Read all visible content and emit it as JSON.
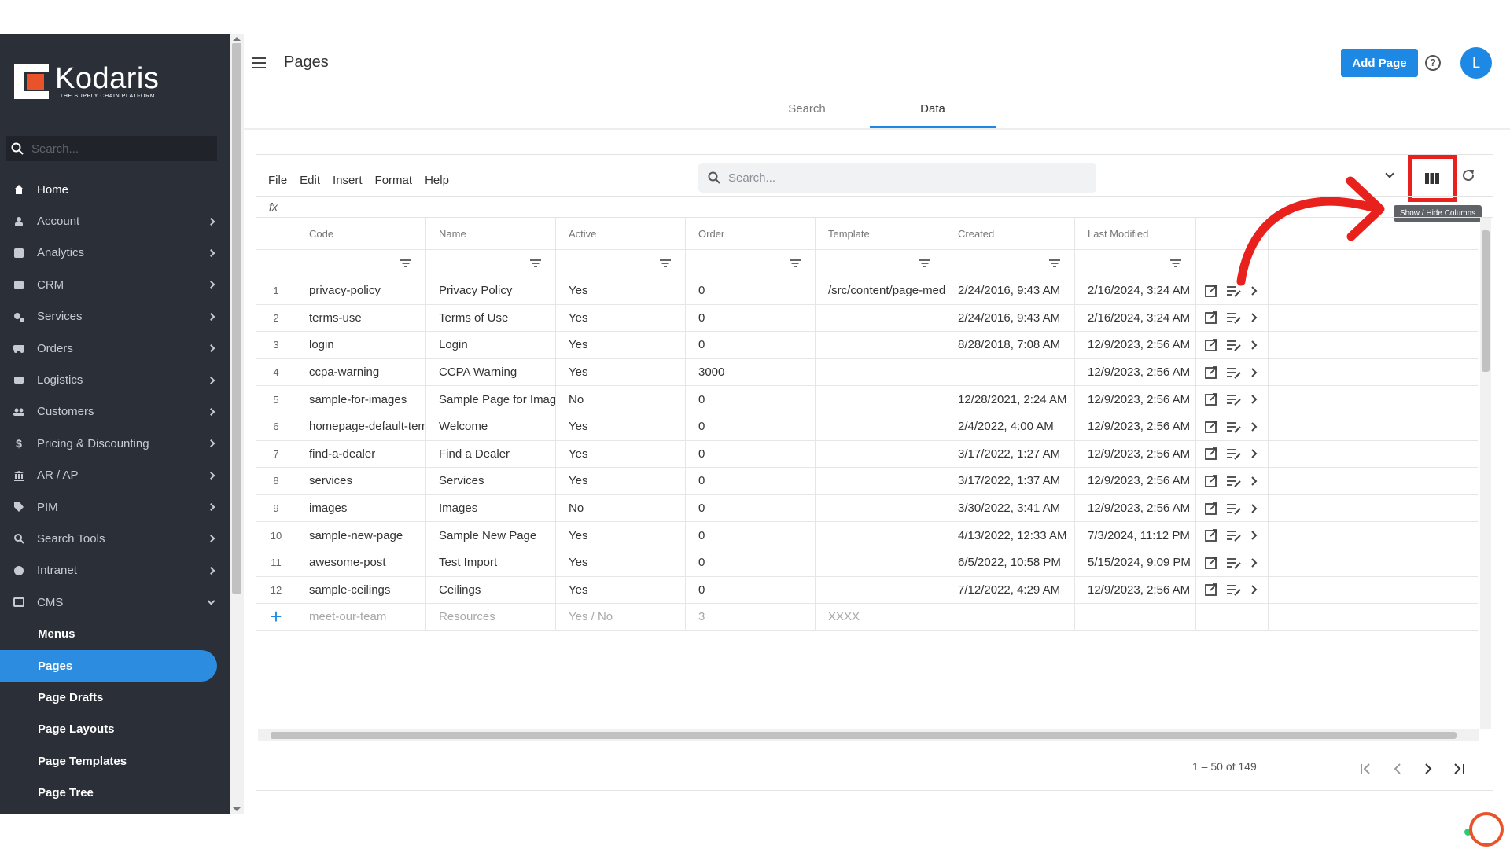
{
  "brand": {
    "name": "Kodaris",
    "tagline": "THE SUPPLY CHAIN PLATFORM"
  },
  "sidebar": {
    "search_placeholder": "Search...",
    "items": [
      {
        "label": "Home",
        "icon": "home-icon"
      },
      {
        "label": "Account",
        "icon": "person-icon"
      },
      {
        "label": "Analytics",
        "icon": "chart-icon"
      },
      {
        "label": "CRM",
        "icon": "crm-icon"
      },
      {
        "label": "Services",
        "icon": "gears-icon"
      },
      {
        "label": "Orders",
        "icon": "truck-icon"
      },
      {
        "label": "Logistics",
        "icon": "bus-icon"
      },
      {
        "label": "Customers",
        "icon": "people-icon"
      },
      {
        "label": "Pricing & Discounting",
        "icon": "dollar-icon"
      },
      {
        "label": "AR / AP",
        "icon": "bank-icon"
      },
      {
        "label": "PIM",
        "icon": "tag-icon"
      },
      {
        "label": "Search Tools",
        "icon": "search-icon"
      },
      {
        "label": "Intranet",
        "icon": "globe-icon"
      },
      {
        "label": "CMS",
        "icon": "cms-icon"
      }
    ],
    "cms_items": [
      {
        "label": "Menus"
      },
      {
        "label": "Pages"
      },
      {
        "label": "Page Drafts"
      },
      {
        "label": "Page Layouts"
      },
      {
        "label": "Page Templates"
      },
      {
        "label": "Page Tree"
      }
    ]
  },
  "header": {
    "title": "Pages",
    "add_button": "Add Page",
    "avatar_initial": "L",
    "tabs": [
      {
        "label": "Search"
      },
      {
        "label": "Data"
      }
    ]
  },
  "toolbar": {
    "menus": [
      "File",
      "Edit",
      "Insert",
      "Format",
      "Help"
    ],
    "search_placeholder": "Search...",
    "tooltip": "Show / Hide Columns",
    "fx": "fx"
  },
  "table": {
    "columns": [
      "Code",
      "Name",
      "Active",
      "Order",
      "Template",
      "Created",
      "Last Modified"
    ],
    "rows": [
      {
        "n": "1",
        "code": "privacy-policy",
        "name": "Privacy Policy",
        "active": "Yes",
        "order": "0",
        "template": "/src/content/page-mediu...",
        "created": "2/24/2016, 9:43 AM",
        "modified": "2/16/2024, 3:24 AM"
      },
      {
        "n": "2",
        "code": "terms-use",
        "name": "Terms of Use",
        "active": "Yes",
        "order": "0",
        "template": "",
        "created": "2/24/2016, 9:43 AM",
        "modified": "2/16/2024, 3:24 AM"
      },
      {
        "n": "3",
        "code": "login",
        "name": "Login",
        "active": "Yes",
        "order": "0",
        "template": "",
        "created": "8/28/2018, 7:08 AM",
        "modified": "12/9/2023, 2:56 AM"
      },
      {
        "n": "4",
        "code": "ccpa-warning",
        "name": "CCPA Warning",
        "active": "Yes",
        "order": "3000",
        "template": "",
        "created": "",
        "modified": "12/9/2023, 2:56 AM"
      },
      {
        "n": "5",
        "code": "sample-for-images",
        "name": "Sample Page for Images",
        "active": "No",
        "order": "0",
        "template": "",
        "created": "12/28/2021, 2:24 AM",
        "modified": "12/9/2023, 2:56 AM"
      },
      {
        "n": "6",
        "code": "homepage-default-tem...",
        "name": "Welcome",
        "active": "Yes",
        "order": "0",
        "template": "",
        "created": "2/4/2022, 4:00 AM",
        "modified": "12/9/2023, 2:56 AM"
      },
      {
        "n": "7",
        "code": "find-a-dealer",
        "name": "Find a Dealer",
        "active": "Yes",
        "order": "0",
        "template": "",
        "created": "3/17/2022, 1:27 AM",
        "modified": "12/9/2023, 2:56 AM"
      },
      {
        "n": "8",
        "code": "services",
        "name": "Services",
        "active": "Yes",
        "order": "0",
        "template": "",
        "created": "3/17/2022, 1:37 AM",
        "modified": "12/9/2023, 2:56 AM"
      },
      {
        "n": "9",
        "code": "images",
        "name": "Images",
        "active": "No",
        "order": "0",
        "template": "",
        "created": "3/30/2022, 3:41 AM",
        "modified": "12/9/2023, 2:56 AM"
      },
      {
        "n": "10",
        "code": "sample-new-page",
        "name": "Sample New Page",
        "active": "Yes",
        "order": "0",
        "template": "",
        "created": "4/13/2022, 12:33 AM",
        "modified": "7/3/2024, 11:12 PM"
      },
      {
        "n": "11",
        "code": "awesome-post",
        "name": "Test Import",
        "active": "Yes",
        "order": "0",
        "template": "",
        "created": "6/5/2022, 10:58 PM",
        "modified": "5/15/2024, 9:09 PM"
      },
      {
        "n": "12",
        "code": "sample-ceilings",
        "name": "Ceilings",
        "active": "Yes",
        "order": "0",
        "template": "",
        "created": "7/12/2022, 4:29 AM",
        "modified": "12/9/2023, 2:56 AM"
      }
    ],
    "new_row": {
      "code": "meet-our-team",
      "name": "Resources",
      "active": "Yes / No",
      "order": "3",
      "template": "XXXX"
    }
  },
  "pagination": {
    "range": "1 – 50 of 149"
  },
  "colors": {
    "accent": "#1e88e5",
    "sidebar_bg": "#2b3038",
    "highlight": "#e8211d",
    "brand_orange": "#e8532b"
  }
}
